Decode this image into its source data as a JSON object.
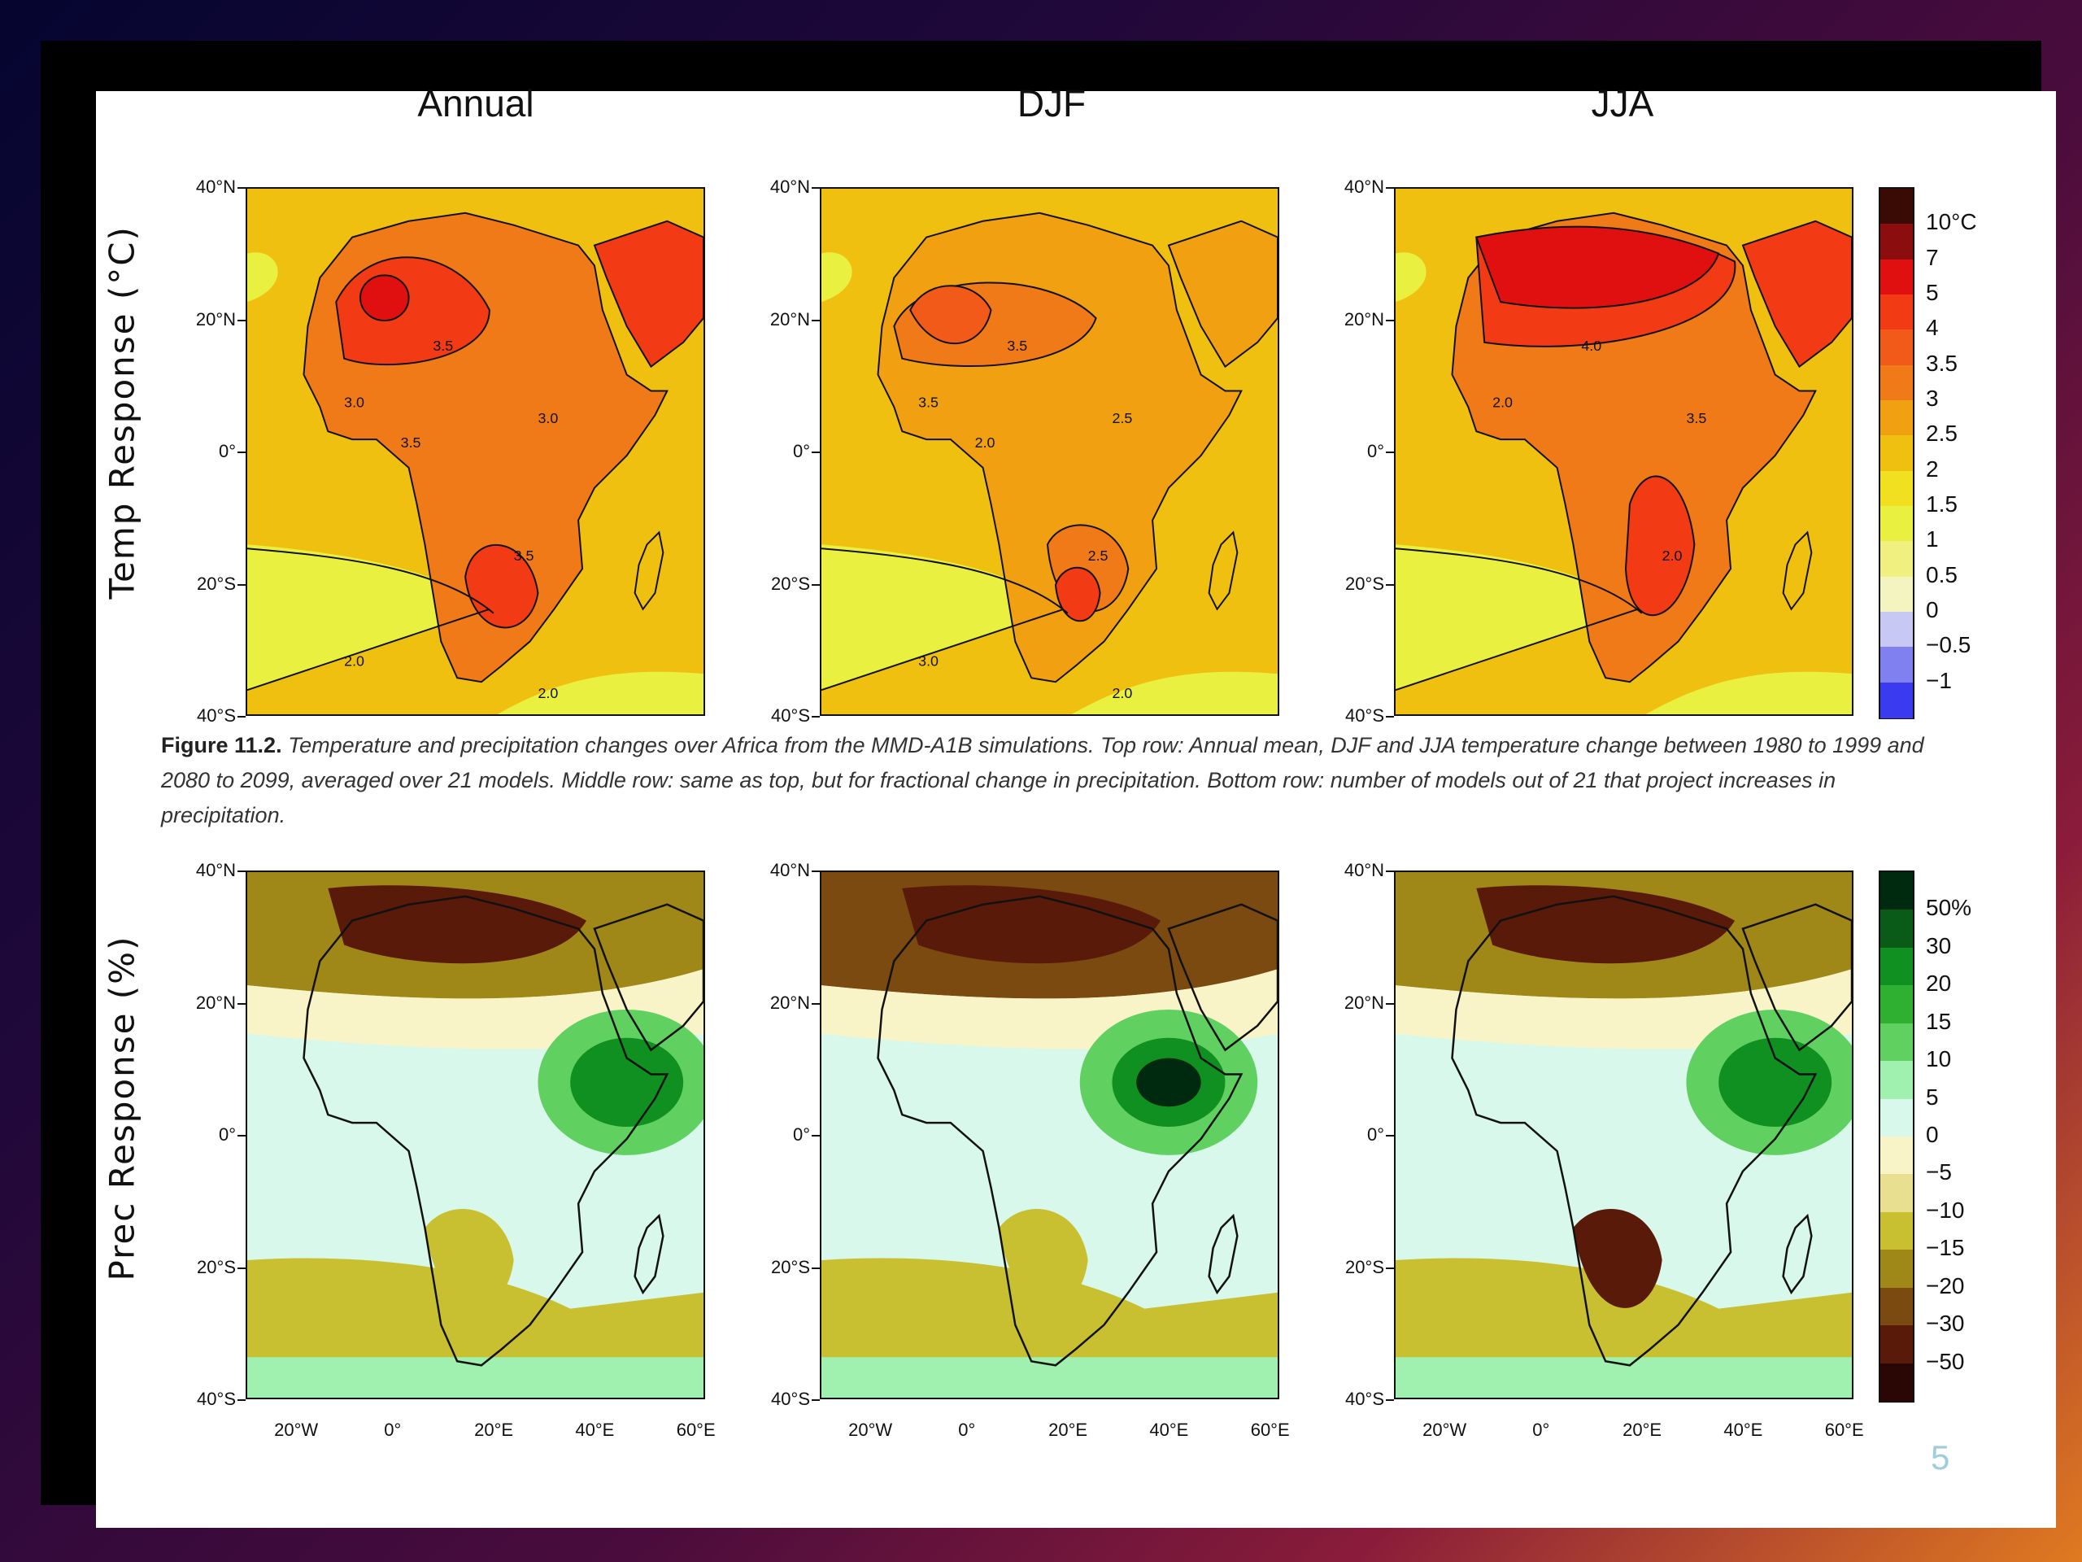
{
  "columns": [
    "Annual",
    "DJF",
    "JJA"
  ],
  "rows": [
    "Temp Response (°C)",
    "Prec Response (%)"
  ],
  "lat_ticks": [
    "40°N",
    "20°N",
    "0°",
    "20°S",
    "40°S"
  ],
  "lon_ticks": [
    "20°W",
    "0°",
    "20°E",
    "40°E",
    "60°E"
  ],
  "temp_colorbar": {
    "labels": [
      "10°C",
      "7",
      "5",
      "4",
      "3.5",
      "3",
      "2.5",
      "2",
      "1.5",
      "1",
      "0.5",
      "0",
      "−0.5",
      "−1"
    ],
    "colors": [
      "#3a0a05",
      "#8c0d0d",
      "#e01010",
      "#f23a14",
      "#f25a1a",
      "#f07a18",
      "#f0a010",
      "#f0c010",
      "#f0e020",
      "#eaf040",
      "#f0f080",
      "#f4f4c0",
      "#c8c8f4",
      "#8080f0",
      "#3a3af0"
    ]
  },
  "prec_colorbar": {
    "labels": [
      "50%",
      "30",
      "20",
      "15",
      "10",
      "5",
      "0",
      "−5",
      "−10",
      "−15",
      "−20",
      "−30",
      "−50"
    ],
    "colors": [
      "#002a10",
      "#0a5a18",
      "#109020",
      "#30b030",
      "#60d060",
      "#a0f0b0",
      "#d8f8ec",
      "#f8f4c8",
      "#e8e090",
      "#c8c030",
      "#a08818",
      "#7a4a10",
      "#5a1a0a",
      "#2a0605"
    ]
  },
  "temp_contour_labels": {
    "annual": [
      "3.5",
      "3.0",
      "3.0",
      "3.5",
      "2.0",
      "2.0",
      "3.5"
    ],
    "djf": [
      "3.5",
      "2.5",
      "3.5",
      "2.5",
      "3.0",
      "2.0",
      "2.0"
    ],
    "jja": [
      "4.0",
      "3.5",
      "2.0",
      "2.0"
    ]
  },
  "caption": {
    "figure_label": "Figure 11.2.",
    "text": " Temperature and precipitation changes over Africa from the MMD-A1B simulations. Top row: Annual mean, DJF and JJA temperature change between 1980 to 1999 and 2080 to 2099, averaged over 21 models. Middle row: same as top, but for fractional change in precipitation. Bottom row: number of models out of 21 that project increases in precipitation."
  },
  "slide_number": "5"
}
